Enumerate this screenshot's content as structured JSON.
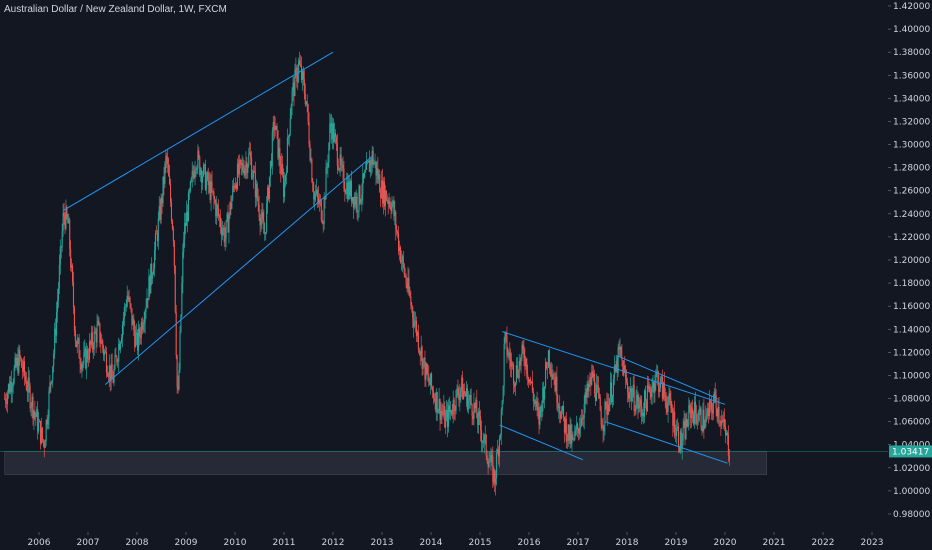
{
  "chart_data": {
    "type": "candlestick",
    "title": "Australian Dollar / New Zealand Dollar, 1W, FXCM",
    "ylim": [
      0.97,
      1.425
    ],
    "xlim": [
      2005.3,
      2023.3
    ],
    "grid": false,
    "y_ticks": [
      "1.42000",
      "1.40000",
      "1.38000",
      "1.36000",
      "1.34000",
      "1.32000",
      "1.30000",
      "1.28000",
      "1.26000",
      "1.24000",
      "1.22000",
      "1.20000",
      "1.18000",
      "1.16000",
      "1.14000",
      "1.12000",
      "1.10000",
      "1.08000",
      "1.06000",
      "1.04000",
      "1.02000",
      "1.00000",
      "0.98000"
    ],
    "x_ticks": [
      "2006",
      "2007",
      "2008",
      "2009",
      "2010",
      "2011",
      "2012",
      "2013",
      "2014",
      "2015",
      "2016",
      "2017",
      "2018",
      "2019",
      "2020",
      "2021",
      "2022",
      "2023"
    ],
    "last_price": "1.03417",
    "colors": {
      "up": "#26a69a",
      "down": "#ef5350",
      "line": "#2196f3",
      "background": "#131722",
      "zone": "#2a2e39"
    },
    "price_path": [
      [
        2005.3,
        1.08
      ],
      [
        2005.6,
        1.115
      ],
      [
        2005.9,
        1.07
      ],
      [
        2006.1,
        1.04
      ],
      [
        2006.3,
        1.12
      ],
      [
        2006.5,
        1.24
      ],
      [
        2006.6,
        1.23
      ],
      [
        2006.75,
        1.13
      ],
      [
        2006.9,
        1.11
      ],
      [
        2007.2,
        1.14
      ],
      [
        2007.5,
        1.095
      ],
      [
        2007.8,
        1.17
      ],
      [
        2008.0,
        1.125
      ],
      [
        2008.3,
        1.19
      ],
      [
        2008.5,
        1.25
      ],
      [
        2008.6,
        1.29
      ],
      [
        2008.75,
        1.22
      ],
      [
        2008.83,
        1.07
      ],
      [
        2008.95,
        1.22
      ],
      [
        2009.2,
        1.29
      ],
      [
        2009.5,
        1.26
      ],
      [
        2009.8,
        1.22
      ],
      [
        2010.0,
        1.27
      ],
      [
        2010.3,
        1.29
      ],
      [
        2010.6,
        1.22
      ],
      [
        2010.8,
        1.32
      ],
      [
        2011.0,
        1.26
      ],
      [
        2011.15,
        1.34
      ],
      [
        2011.3,
        1.37
      ],
      [
        2011.45,
        1.34
      ],
      [
        2011.6,
        1.26
      ],
      [
        2011.8,
        1.24
      ],
      [
        2011.95,
        1.32
      ],
      [
        2012.2,
        1.27
      ],
      [
        2012.5,
        1.25
      ],
      [
        2012.8,
        1.29
      ],
      [
        2013.0,
        1.26
      ],
      [
        2013.2,
        1.25
      ],
      [
        2013.4,
        1.2
      ],
      [
        2013.7,
        1.14
      ],
      [
        2013.9,
        1.1
      ],
      [
        2014.1,
        1.08
      ],
      [
        2014.3,
        1.06
      ],
      [
        2014.6,
        1.09
      ],
      [
        2014.9,
        1.07
      ],
      [
        2015.1,
        1.04
      ],
      [
        2015.3,
        1.01
      ],
      [
        2015.45,
        1.07
      ],
      [
        2015.5,
        1.13
      ],
      [
        2015.7,
        1.1
      ],
      [
        2015.9,
        1.12
      ],
      [
        2016.2,
        1.06
      ],
      [
        2016.4,
        1.12
      ],
      [
        2016.7,
        1.06
      ],
      [
        2016.9,
        1.04
      ],
      [
        2017.1,
        1.07
      ],
      [
        2017.3,
        1.1
      ],
      [
        2017.5,
        1.06
      ],
      [
        2017.7,
        1.09
      ],
      [
        2017.85,
        1.12
      ],
      [
        2018.0,
        1.09
      ],
      [
        2018.3,
        1.07
      ],
      [
        2018.6,
        1.1
      ],
      [
        2018.9,
        1.07
      ],
      [
        2019.1,
        1.04
      ],
      [
        2019.3,
        1.07
      ],
      [
        2019.6,
        1.06
      ],
      [
        2019.8,
        1.08
      ],
      [
        2020.0,
        1.05
      ],
      [
        2020.1,
        1.034
      ]
    ],
    "trend_lines": [
      {
        "x1": 2006.5,
        "y1": 1.243,
        "x2": 2012.0,
        "y2": 1.38
      },
      {
        "x1": 2007.35,
        "y1": 1.092,
        "x2": 2012.8,
        "y2": 1.29
      },
      {
        "x1": 2015.45,
        "y1": 1.138,
        "x2": 2020.0,
        "y2": 1.075
      },
      {
        "x1": 2015.4,
        "y1": 1.057,
        "x2": 2017.1,
        "y2": 1.027
      },
      {
        "x1": 2017.8,
        "y1": 1.117,
        "x2": 2019.85,
        "y2": 1.08
      },
      {
        "x1": 2017.55,
        "y1": 1.06,
        "x2": 2020.05,
        "y2": 1.024
      }
    ],
    "support_zone": {
      "x1": 2005.3,
      "x2": 2020.85,
      "y1": 1.014,
      "y2": 1.034
    },
    "price_line": 1.03417
  }
}
